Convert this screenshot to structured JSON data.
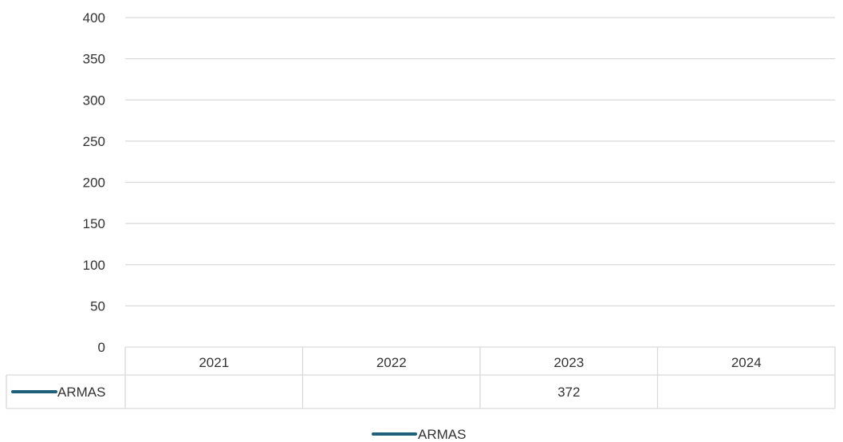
{
  "chart_data": {
    "type": "line",
    "title": "",
    "xlabel": "",
    "ylabel": "",
    "categories": [
      "2021",
      "2022",
      "2023",
      "2024"
    ],
    "series": [
      {
        "name": "ARMAS",
        "values": [
          null,
          null,
          372,
          null
        ]
      }
    ],
    "value_labels": [
      "",
      "",
      "372",
      ""
    ],
    "ylim": [
      0,
      400
    ],
    "yticks": [
      "0",
      "50",
      "100",
      "150",
      "200",
      "250",
      "300",
      "350",
      "400"
    ],
    "grid": true,
    "data_table": true,
    "legend": {
      "position": "bottom",
      "entries": [
        "ARMAS"
      ]
    },
    "colors": {
      "series": "#1f5f7a",
      "grid": "#d9d9d9",
      "text": "#333333"
    }
  }
}
